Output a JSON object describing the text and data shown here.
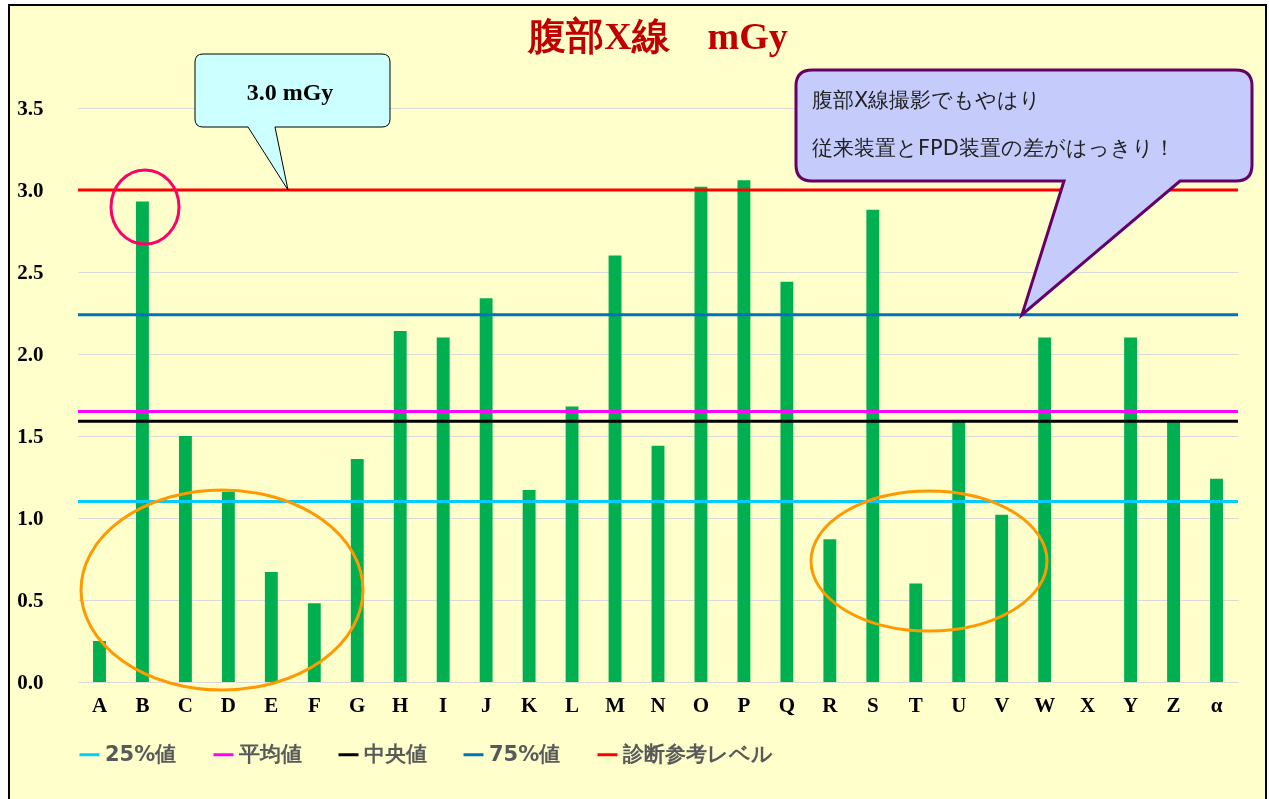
{
  "chart_data": {
    "type": "bar",
    "title": "腹部X線　mGy",
    "categories": [
      "A",
      "B",
      "C",
      "D",
      "E",
      "F",
      "G",
      "H",
      "I",
      "J",
      "K",
      "L",
      "M",
      "N",
      "O",
      "P",
      "Q",
      "R",
      "S",
      "T",
      "U",
      "V",
      "W",
      "X",
      "Y",
      "Z",
      "α"
    ],
    "values": [
      0.25,
      2.93,
      1.5,
      1.16,
      0.67,
      0.48,
      1.36,
      2.14,
      2.1,
      2.34,
      1.17,
      1.68,
      2.6,
      1.44,
      3.02,
      3.06,
      2.44,
      0.87,
      2.88,
      0.6,
      1.59,
      1.02,
      2.1,
      null,
      2.1,
      1.59,
      1.24
    ],
    "color": "#00b050",
    "ylim": [
      0,
      3.5
    ],
    "yticks": [
      {
        "value": 0,
        "label": "0.0"
      },
      {
        "value": 0.5,
        "label": "0.5"
      },
      {
        "value": 1,
        "label": "1.0"
      },
      {
        "value": 1.5,
        "label": "1.5"
      },
      {
        "value": 2,
        "label": "2.0"
      },
      {
        "value": 2.5,
        "label": "2.5"
      },
      {
        "value": 3,
        "label": "3.0"
      },
      {
        "value": 3.5,
        "label": "3.5"
      }
    ],
    "grid": "y",
    "legend": "bottom",
    "ref_lines": [
      {
        "axis": "y",
        "value": 1.1,
        "label": "25%値",
        "color": "#00ccff"
      },
      {
        "axis": "y",
        "value": 1.65,
        "label": "平均値",
        "color": "#ff00ff"
      },
      {
        "axis": "y",
        "value": 1.59,
        "label": "中央値",
        "color": "#000000"
      },
      {
        "axis": "y",
        "value": 2.24,
        "label": "75%値",
        "color": "#0070c0"
      },
      {
        "axis": "y",
        "value": 3.0,
        "label": "診断参考レベル",
        "color": "#ff0000"
      }
    ],
    "annotations": [
      "3.0 mGy",
      "腹部X線撮影でもやはり",
      "従来装置とFPD装置の差がはっきり！"
    ]
  }
}
